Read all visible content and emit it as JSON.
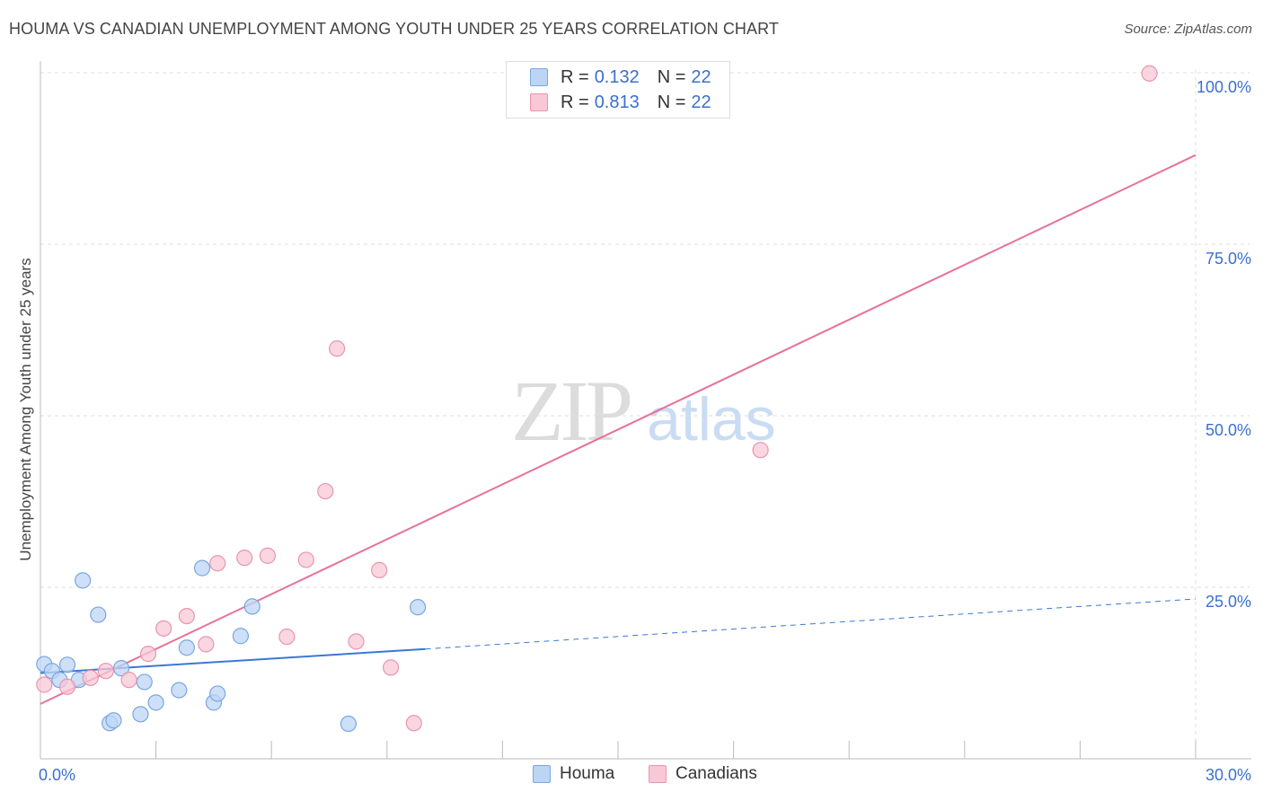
{
  "title": "HOUMA VS CANADIAN UNEMPLOYMENT AMONG YOUTH UNDER 25 YEARS CORRELATION CHART",
  "source": "Source: ZipAtlas.com",
  "watermark": {
    "zip": "ZIP",
    "atlas": "atlas"
  },
  "colors": {
    "houma_fill": "#bcd5f5",
    "houma_stroke": "#7aa6e0",
    "houma_line": "#3a78d6",
    "canadians_fill": "#f8c8d6",
    "canadians_stroke": "#e895b0",
    "canadians_line": "#e8709a",
    "axis_label": "#3a6fd0",
    "grid": "#dddddd"
  },
  "legend": {
    "houma": {
      "r_label": "R =",
      "r_value": "0.132",
      "n_label": "N =",
      "n_value": "22"
    },
    "canadians": {
      "r_label": "R =",
      "r_value": "0.813",
      "n_label": "N =",
      "n_value": "22"
    }
  },
  "chart_data": {
    "type": "scatter",
    "title": "HOUMA VS CANADIAN UNEMPLOYMENT AMONG YOUTH UNDER 25 YEARS CORRELATION CHART",
    "xlabel": "",
    "ylabel": "Unemployment Among Youth under 25 years",
    "xlim": [
      0,
      30
    ],
    "ylim": [
      0,
      100
    ],
    "x_tick_labels": [
      "0.0%",
      "30.0%"
    ],
    "y_ticks": [
      25,
      50,
      75,
      100
    ],
    "y_tick_labels": [
      "25.0%",
      "50.0%",
      "75.0%",
      "100.0%"
    ],
    "grid": true,
    "legend_position": "top-center",
    "series": [
      {
        "name": "Houma",
        "points": [
          [
            0.1,
            13.8
          ],
          [
            0.3,
            12.8
          ],
          [
            0.5,
            11.5
          ],
          [
            0.7,
            13.7
          ],
          [
            1.0,
            11.5
          ],
          [
            1.1,
            26.0
          ],
          [
            1.5,
            21.0
          ],
          [
            1.8,
            5.2
          ],
          [
            1.9,
            5.6
          ],
          [
            2.1,
            13.2
          ],
          [
            2.6,
            6.5
          ],
          [
            2.7,
            11.2
          ],
          [
            3.0,
            8.2
          ],
          [
            3.6,
            10.0
          ],
          [
            3.8,
            16.2
          ],
          [
            4.2,
            27.8
          ],
          [
            4.5,
            8.2
          ],
          [
            4.6,
            9.5
          ],
          [
            5.2,
            17.9
          ],
          [
            5.5,
            22.2
          ],
          [
            8.0,
            5.1
          ],
          [
            9.8,
            22.1
          ]
        ],
        "trend": {
          "x0": 0,
          "y0": 12.5,
          "x1": 10.0,
          "y1": 16.0,
          "dashed_to_x": 30,
          "dashed_to_y": 23.3
        }
      },
      {
        "name": "Canadians",
        "points": [
          [
            0.1,
            10.8
          ],
          [
            0.7,
            10.5
          ],
          [
            1.3,
            11.8
          ],
          [
            1.7,
            12.8
          ],
          [
            2.3,
            11.5
          ],
          [
            2.8,
            15.3
          ],
          [
            3.2,
            19.0
          ],
          [
            3.8,
            20.8
          ],
          [
            4.3,
            16.7
          ],
          [
            4.6,
            28.5
          ],
          [
            5.3,
            29.3
          ],
          [
            5.9,
            29.6
          ],
          [
            6.4,
            17.8
          ],
          [
            6.9,
            29.0
          ],
          [
            7.4,
            39.0
          ],
          [
            7.7,
            59.8
          ],
          [
            8.2,
            17.1
          ],
          [
            8.8,
            27.5
          ],
          [
            9.1,
            13.3
          ],
          [
            9.7,
            5.2
          ],
          [
            18.7,
            45.0
          ],
          [
            28.8,
            99.9
          ]
        ],
        "trend": {
          "x0": 0,
          "y0": 8.0,
          "x1": 30,
          "y1": 88.0
        }
      }
    ]
  }
}
